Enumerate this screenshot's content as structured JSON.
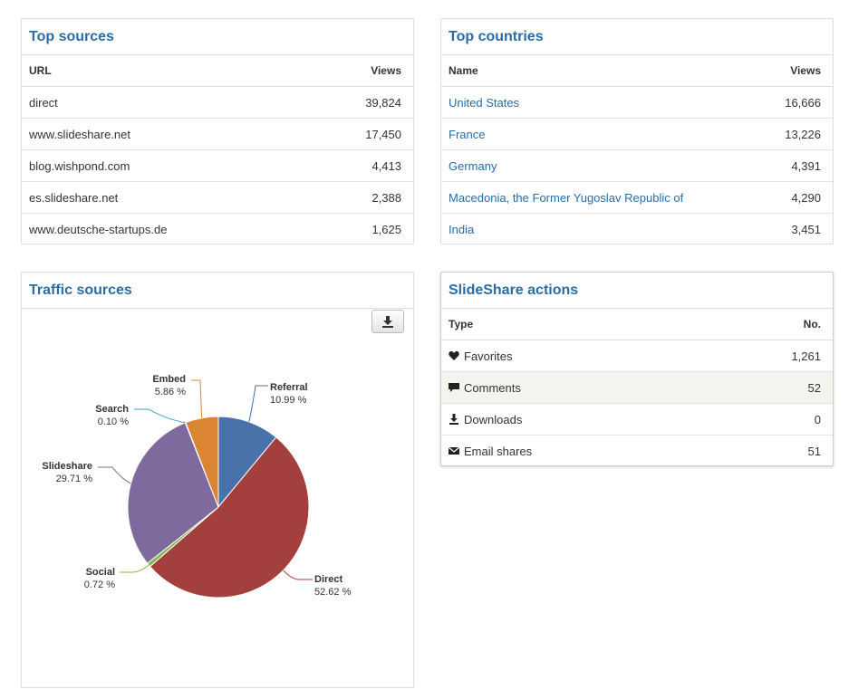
{
  "top_sources": {
    "title": "Top sources",
    "col_url": "URL",
    "col_views": "Views",
    "rows": [
      {
        "url": "direct",
        "views": "39,824"
      },
      {
        "url": "www.slideshare.net",
        "views": "17,450"
      },
      {
        "url": "blog.wishpond.com",
        "views": "4,413"
      },
      {
        "url": "es.slideshare.net",
        "views": "2,388"
      },
      {
        "url": "www.deutsche-startups.de",
        "views": "1,625"
      }
    ]
  },
  "top_countries": {
    "title": "Top countries",
    "col_name": "Name",
    "col_views": "Views",
    "rows": [
      {
        "name": "United States",
        "views": "16,666"
      },
      {
        "name": "France",
        "views": "13,226"
      },
      {
        "name": "Germany",
        "views": "4,391"
      },
      {
        "name": "Macedonia, the Former Yugoslav Republic of",
        "views": "4,290"
      },
      {
        "name": "India",
        "views": "3,451"
      }
    ]
  },
  "traffic_sources": {
    "title": "Traffic sources",
    "download_icon": "download-icon"
  },
  "chart_data": {
    "type": "pie",
    "title": "",
    "series": [
      {
        "name": "Referral",
        "value": 10.99,
        "label": "10.99 %",
        "color": "#4a72aa"
      },
      {
        "name": "Direct",
        "value": 52.62,
        "label": "52.62 %",
        "color": "#a33f3c"
      },
      {
        "name": "Social",
        "value": 0.72,
        "label": "0.72 %",
        "color": "#86b448"
      },
      {
        "name": "Slideshare",
        "value": 29.71,
        "label": "29.71 %",
        "color": "#7f6a9e"
      },
      {
        "name": "Search",
        "value": 0.1,
        "label": "0.10 %",
        "color": "#3d9bc4"
      },
      {
        "name": "Embed",
        "value": 5.86,
        "label": "5.86 %",
        "color": "#db8431"
      }
    ]
  },
  "slideshare_actions": {
    "title": "SlideShare actions",
    "col_type": "Type",
    "col_no": "No.",
    "rows": [
      {
        "icon": "heart-icon",
        "type": "Favorites",
        "no": "1,261"
      },
      {
        "icon": "comment-icon",
        "type": "Comments",
        "no": "52"
      },
      {
        "icon": "download-icon",
        "type": "Downloads",
        "no": "0"
      },
      {
        "icon": "envelope-icon",
        "type": "Email shares",
        "no": "51"
      }
    ]
  }
}
